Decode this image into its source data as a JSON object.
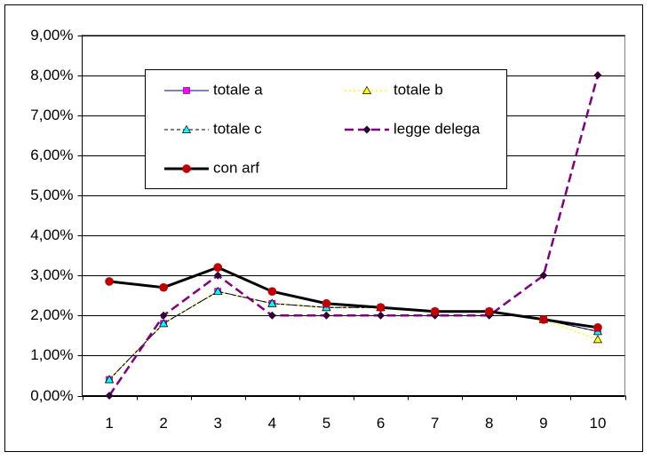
{
  "chart_data": {
    "type": "line",
    "categories": [
      "1",
      "2",
      "3",
      "4",
      "5",
      "6",
      "7",
      "8",
      "9",
      "10"
    ],
    "series": [
      {
        "name": "totale a",
        "color": "#000080",
        "marker_color": "#ff00ff",
        "marker": "square",
        "dash": "none",
        "width": 1,
        "values": [
          0.4,
          1.8,
          2.6,
          2.3,
          2.2,
          2.2,
          2.1,
          2.1,
          1.9,
          1.6
        ]
      },
      {
        "name": "totale b",
        "color": "#ffff00",
        "marker_color": "#ffff00",
        "marker": "triangle",
        "dash": "2,3",
        "width": 1.5,
        "values": [
          0.4,
          1.8,
          2.6,
          2.3,
          2.2,
          2.2,
          2.1,
          2.1,
          1.9,
          1.4
        ]
      },
      {
        "name": "totale c",
        "color": "#000000",
        "marker_color": "#00ffff",
        "marker": "triangle",
        "dash": "4,3",
        "width": 1,
        "values": [
          0.4,
          1.8,
          2.6,
          2.3,
          2.2,
          2.2,
          2.1,
          2.1,
          1.9,
          1.6
        ]
      },
      {
        "name": "legge delega",
        "color": "#800080",
        "marker_color": "#330033",
        "marker": "diamond",
        "dash": "10,5",
        "width": 2.5,
        "values": [
          0,
          2,
          3,
          2,
          2,
          2,
          2,
          2,
          3,
          8
        ]
      },
      {
        "name": "con arf",
        "color": "#000000",
        "marker_color": "#c00000",
        "marker": "circle",
        "dash": "none",
        "width": 3,
        "values": [
          2.85,
          2.7,
          3.2,
          2.6,
          2.3,
          2.2,
          2.1,
          2.1,
          1.9,
          1.7
        ]
      }
    ],
    "ylim": [
      0,
      9
    ],
    "yticks": [
      {
        "value": 0,
        "label": "0,00%"
      },
      {
        "value": 1,
        "label": "1,00%"
      },
      {
        "value": 2,
        "label": "2,00%"
      },
      {
        "value": 3,
        "label": "3,00%"
      },
      {
        "value": 4,
        "label": "4,00%"
      },
      {
        "value": 5,
        "label": "5,00%"
      },
      {
        "value": 6,
        "label": "6,00%"
      },
      {
        "value": 7,
        "label": "7,00%"
      },
      {
        "value": 8,
        "label": "8,00%"
      },
      {
        "value": 9,
        "label": "9,00%"
      }
    ],
    "grid": true
  }
}
